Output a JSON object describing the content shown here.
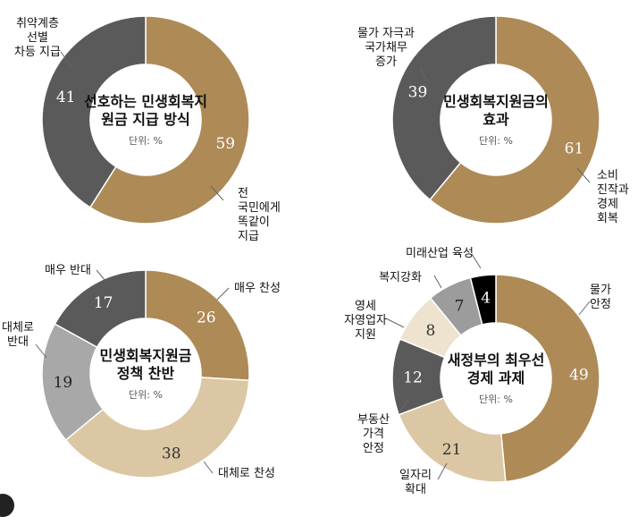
{
  "unit_label": "단위: %",
  "colors": {
    "gold": "#ae8a57",
    "dark_gray": "#5a5a5a",
    "gray": "#9c9c9c",
    "light_gray": "#a8a8a8",
    "beige": "#dcc7a4",
    "cream": "#eee3cf",
    "black": "#000000"
  },
  "chart_data": [
    {
      "type": "pie",
      "title_lines": [
        "선호하는 민생회복지",
        "원금 지급 방식"
      ],
      "slices": [
        {
          "value": 59,
          "label_lines": [
            "전",
            "국민에게",
            "똑같이",
            "지급"
          ],
          "color": "#ae8a57",
          "value_color": "#ffffff"
        },
        {
          "value": 41,
          "label_lines": [
            "취약계층",
            "선별",
            "차등 지급"
          ],
          "color": "#5a5a5a",
          "value_color": "#ffffff"
        }
      ]
    },
    {
      "type": "pie",
      "title_lines": [
        "민생회복지원금의",
        "효과"
      ],
      "slices": [
        {
          "value": 61,
          "label_lines": [
            "소비",
            "진작과",
            "경제",
            "회복"
          ],
          "color": "#ae8a57",
          "value_color": "#ffffff"
        },
        {
          "value": 39,
          "label_lines": [
            "물가 자극과",
            "국가채무",
            "증가"
          ],
          "color": "#5a5a5a",
          "value_color": "#ffffff"
        }
      ]
    },
    {
      "type": "pie",
      "title_lines": [
        "민생회복지원금",
        "정책 찬반"
      ],
      "slices": [
        {
          "value": 26,
          "label_lines": [
            "매우 찬성"
          ],
          "color": "#ae8a57",
          "value_color": "#ffffff"
        },
        {
          "value": 38,
          "label_lines": [
            "대체로 찬성"
          ],
          "color": "#dcc7a4",
          "value_color": "#333333"
        },
        {
          "value": 19,
          "label_lines": [
            "대체로",
            "반대"
          ],
          "color": "#a8a8a8",
          "value_color": "#222222"
        },
        {
          "value": 17,
          "label_lines": [
            "매우 반대"
          ],
          "color": "#5a5a5a",
          "value_color": "#ffffff"
        }
      ]
    },
    {
      "type": "pie",
      "title_lines": [
        "새정부의 최우선",
        "경제 과제"
      ],
      "slices": [
        {
          "value": 49,
          "label_lines": [
            "물가",
            "안정"
          ],
          "color": "#ae8a57",
          "value_color": "#ffffff"
        },
        {
          "value": 21,
          "label_lines": [
            "일자리",
            "확대"
          ],
          "color": "#dcc7a4",
          "value_color": "#333333"
        },
        {
          "value": 12,
          "label_lines": [
            "부동산",
            "가격",
            "안정"
          ],
          "color": "#5a5a5a",
          "value_color": "#ffffff"
        },
        {
          "value": 8,
          "label_lines": [
            "영세",
            "자영업자",
            "지원"
          ],
          "color": "#eee3cf",
          "value_color": "#333333"
        },
        {
          "value": 7,
          "label_lines": [
            "복지강화"
          ],
          "color": "#9c9c9c",
          "value_color": "#222222"
        },
        {
          "value": 4,
          "label_lines": [
            "미래산업 육성"
          ],
          "color": "#000000",
          "value_color": "#ffffff"
        }
      ]
    }
  ]
}
